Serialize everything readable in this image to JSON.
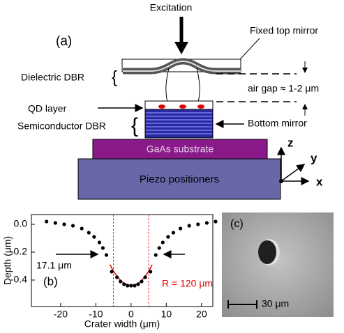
{
  "figure": {
    "excitation": "Excitation",
    "panel_a": "(a)",
    "fixed_top_mirror": "Fixed top mirror",
    "dielectric_dbr": "Dielectric DBR",
    "air_gap": "air gap ≈ 1-2 μm",
    "qd_layer": "QD layer",
    "semiconductor_dbr": "Semiconductor DBR",
    "bottom_mirror": "Bottom mirror",
    "gaas_substrate": "GaAs substrate",
    "piezo_positioners": "Piezo positioners",
    "axis_z": "z",
    "axis_y": "y",
    "axis_x": "x",
    "panel_c": "(c)",
    "scale_bar": "30 μm"
  },
  "chart_data": {
    "type": "scatter",
    "panel_label": "(b)",
    "xlabel": "Crater width (μm)",
    "ylabel": "Depth (μm)",
    "annotations": [
      "17.1 μm",
      "R = 120 μm"
    ],
    "annotation_color": "#e00000",
    "x": [
      -24,
      -21.5,
      -19,
      -16.5,
      -14,
      -12,
      -10.5,
      -9,
      -8,
      -7,
      -5.5,
      -4,
      -3,
      -2,
      -1,
      0,
      1,
      2,
      3,
      4,
      5.5,
      7,
      8,
      9,
      10.5,
      12,
      14,
      16.5,
      19,
      21.5,
      24
    ],
    "values": [
      0.02,
      0.01,
      0.0,
      -0.01,
      -0.03,
      -0.06,
      -0.09,
      -0.13,
      -0.17,
      -0.22,
      -0.34,
      -0.38,
      -0.41,
      -0.43,
      -0.44,
      -0.44,
      -0.44,
      -0.43,
      -0.41,
      -0.38,
      -0.34,
      -0.22,
      -0.17,
      -0.13,
      -0.09,
      -0.06,
      -0.03,
      -0.01,
      0.0,
      0.01,
      0.02
    ],
    "color": "#000000",
    "fit": {
      "x": [
        -6,
        -5,
        -4,
        -3,
        -2,
        -1,
        0,
        1,
        2,
        3,
        4,
        5,
        6
      ],
      "values": [
        -0.29,
        -0.336,
        -0.373,
        -0.403,
        -0.423,
        -0.436,
        -0.44,
        -0.436,
        -0.423,
        -0.403,
        -0.373,
        -0.336,
        -0.29
      ],
      "color": "#e00000"
    },
    "vlines": [
      -5,
      5
    ],
    "xlim": [
      -28.3,
      23.2
    ],
    "ylim": [
      -0.59,
      0.07
    ],
    "xticks": [
      -20,
      -10,
      0,
      10,
      20
    ],
    "yticks": [
      {
        "value": 0,
        "label": "0.0"
      },
      -0.2,
      -0.4
    ]
  }
}
